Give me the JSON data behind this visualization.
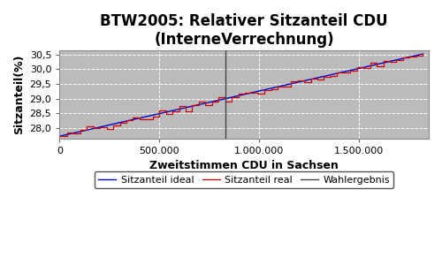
{
  "title_line1": "BTW2005: Relativer Sitzanteil CDU",
  "title_line2": "(InterneVerrechnung)",
  "xlabel": "Zweitstimmen CDU in Sachsen",
  "ylabel": "Sitzanteil(%)",
  "xlim": [
    0,
    1850000
  ],
  "ylim": [
    27.65,
    30.65
  ],
  "yticks": [
    28.0,
    28.5,
    29.0,
    29.5,
    30.0,
    30.5
  ],
  "xticks": [
    0,
    500000,
    1000000,
    1500000
  ],
  "xticklabels": [
    "0",
    "500.000",
    "1.000.000",
    "1.500.000"
  ],
  "wahlergebnis_x": 830000,
  "x_start": 5000,
  "x_end": 1820000,
  "y_start": 27.73,
  "y_end": 30.52,
  "color_real": "#cc0000",
  "color_ideal": "#0000cc",
  "color_wahlergebnis": "#444444",
  "plot_bg_color": "#bbbbbb",
  "fig_bg_color": "#ffffff",
  "grid_color": "#ffffff",
  "legend_labels": [
    "Sitzanteil real",
    "Sitzanteil ideal",
    "Wahlergebnis"
  ],
  "title_fontsize": 12,
  "axis_label_fontsize": 9,
  "tick_fontsize": 8,
  "legend_fontsize": 8
}
